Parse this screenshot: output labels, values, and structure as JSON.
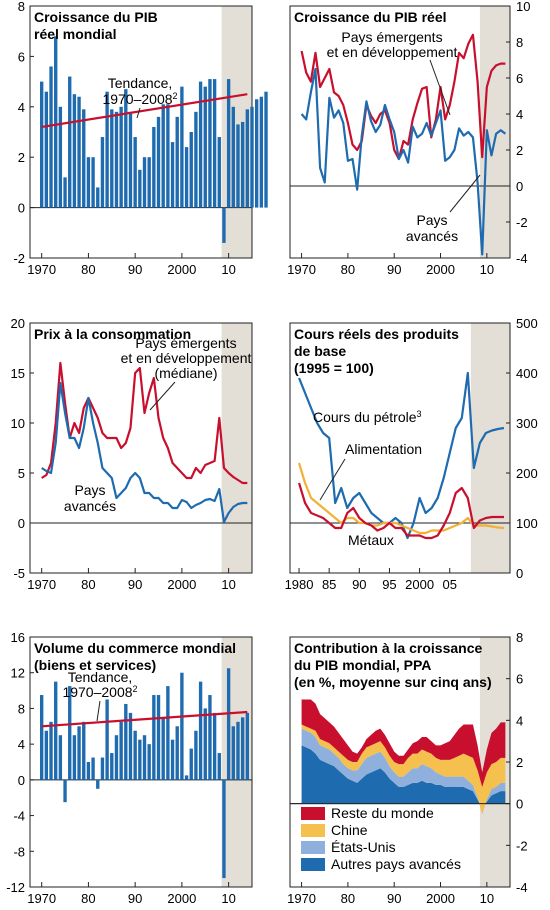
{
  "colors": {
    "bar": "#1f6bb0",
    "trend": "#c8102e",
    "emerging": "#c8102e",
    "advanced": "#1f6bb0",
    "oil": "#1f6bb0",
    "food": "#f2b134",
    "metals": "#c8102e",
    "world_rest": "#c8102e",
    "china": "#f5c04e",
    "us": "#8fb0dc",
    "other_adv": "#1f6bb0",
    "shade": "#e3dfd7"
  },
  "chart_data": [
    {
      "id": "p1",
      "type": "bar",
      "title": [
        "Croissance du PIB",
        "réel mondial"
      ],
      "ylim": [
        -2,
        8
      ],
      "yticks": [
        -2,
        0,
        2,
        4,
        6,
        8
      ],
      "xticks": [
        1970,
        1980,
        1990,
        2000,
        2010
      ],
      "xtick_labels": [
        "1970",
        "80",
        "90",
        "2000",
        "10"
      ],
      "x_start": 1970,
      "values": [
        5.0,
        4.6,
        5.6,
        6.8,
        4.0,
        1.2,
        5.2,
        4.5,
        4.4,
        3.9,
        2.0,
        2.0,
        0.8,
        2.8,
        4.6,
        3.9,
        3.8,
        4.0,
        4.7,
        3.8,
        2.8,
        1.5,
        2.0,
        2.0,
        3.2,
        3.6,
        4.1,
        4.1,
        2.6,
        3.6,
        4.8,
        2.4,
        3.0,
        3.8,
        5.0,
        4.8,
        5.1,
        5.1,
        2.8,
        -1.4,
        5.1,
        4.0,
        3.3,
        3.4,
        3.9,
        4.0,
        4.3,
        4.4,
        4.6
      ],
      "series": [
        {
          "name": "Tendance, 1970–2008",
          "x": [
            1970,
            2014
          ],
          "values": [
            3.2,
            4.5
          ]
        }
      ],
      "annotations": [
        {
          "text": "Tendance,",
          "line2": "1970–2008",
          "sup": "2"
        }
      ],
      "shade_from": 2008.5,
      "shade_to": 2015
    },
    {
      "id": "p2",
      "type": "line",
      "title": [
        "Croissance du PIB réel"
      ],
      "ylim": [
        -4,
        10
      ],
      "yticks": [
        -4,
        -2,
        0,
        2,
        4,
        6,
        8,
        10
      ],
      "xticks": [
        1970,
        1980,
        1990,
        2000,
        2010
      ],
      "xtick_labels": [
        "1970",
        "80",
        "90",
        "2000",
        "10"
      ],
      "x_start": 1970,
      "series": [
        {
          "name": "Pays émergents et en développement",
          "values": [
            7.5,
            6.3,
            5.8,
            7.4,
            5.5,
            6.0,
            6.5,
            5.2,
            5.0,
            4.5,
            3.5,
            2.3,
            2.0,
            2.5,
            4.5,
            3.9,
            3.5,
            4.0,
            4.2,
            3.5,
            2.0,
            1.5,
            2.5,
            2.3,
            3.7,
            4.6,
            5.4,
            5.5,
            2.7,
            3.7,
            5.5,
            3.7,
            4.5,
            5.8,
            7.4,
            7.1,
            7.9,
            8.4,
            5.8,
            1.6,
            5.5,
            6.4,
            6.7,
            6.8,
            6.8
          ]
        },
        {
          "name": "Pays avancés",
          "values": [
            4.0,
            3.7,
            5.2,
            6.5,
            1.0,
            0.2,
            4.9,
            3.8,
            4.2,
            3.5,
            1.4,
            1.5,
            -0.2,
            2.8,
            4.7,
            3.6,
            3.0,
            3.4,
            4.5,
            3.7,
            3.0,
            1.5,
            2.0,
            1.3,
            3.3,
            2.7,
            2.9,
            3.5,
            2.8,
            3.5,
            4.2,
            1.4,
            1.6,
            2.0,
            3.2,
            2.8,
            3.0,
            2.7,
            0.2,
            -3.8,
            3.1,
            1.7,
            2.9,
            3.1,
            2.9
          ]
        }
      ],
      "annotations": [
        {
          "text": "Pays émergents",
          "line2": "et en développement"
        },
        {
          "text": "Pays",
          "line2": "avancés"
        }
      ],
      "shade_from": 2008.5,
      "shade_to": 2015
    },
    {
      "id": "p3",
      "type": "line",
      "title": [
        "Prix à la consommation"
      ],
      "ylim": [
        -5,
        20
      ],
      "yticks": [
        -5,
        0,
        5,
        10,
        15,
        20
      ],
      "xticks": [
        1970,
        1980,
        1990,
        2000,
        2010
      ],
      "xtick_labels": [
        "1970",
        "80",
        "90",
        "2000",
        "10"
      ],
      "x_start": 1970,
      "series": [
        {
          "name": "Pays émergents et en développement (médiane)",
          "values": [
            4.5,
            4.8,
            6.0,
            10.0,
            16.0,
            12.0,
            8.5,
            10.0,
            9.0,
            11.5,
            12.5,
            11.5,
            10.5,
            9.0,
            8.5,
            8.5,
            8.5,
            7.5,
            8.0,
            9.5,
            15.0,
            15.5,
            11.0,
            13.0,
            14.5,
            10.5,
            8.5,
            7.5,
            6.0,
            5.5,
            5.0,
            4.5,
            4.5,
            5.5,
            5.0,
            5.8,
            6.0,
            6.2,
            10.5,
            5.5,
            5.0,
            4.6,
            4.3,
            4.0,
            4.0
          ]
        },
        {
          "name": "Pays avancés",
          "values": [
            5.5,
            5.2,
            5.0,
            8.0,
            14.0,
            11.0,
            8.5,
            8.5,
            7.5,
            9.5,
            12.5,
            10.0,
            8.0,
            5.5,
            5.0,
            4.5,
            2.5,
            3.0,
            3.5,
            4.5,
            5.0,
            4.5,
            3.0,
            3.0,
            2.5,
            2.5,
            2.0,
            2.0,
            1.5,
            1.5,
            2.3,
            2.1,
            1.5,
            1.8,
            2.0,
            2.3,
            2.4,
            2.2,
            3.4,
            0.1,
            1.0,
            1.6,
            1.9,
            2.0,
            2.0
          ]
        }
      ],
      "annotations": [
        {
          "text": "Pays émergents",
          "line2": "et en développement",
          "line3": "(médiane)"
        },
        {
          "text": "Pays",
          "line2": "avancés"
        }
      ],
      "shade_from": 2008.5,
      "shade_to": 2015
    },
    {
      "id": "p4",
      "type": "line",
      "title": [
        "Cours réels des produits",
        "de base",
        "(1995 = 100)"
      ],
      "ylim": [
        0,
        500
      ],
      "yticks": [
        0,
        100,
        200,
        300,
        400,
        500
      ],
      "xticks": [
        1980,
        1985,
        1990,
        1995,
        2000,
        2005
      ],
      "xtick_labels": [
        "1980",
        "85",
        "90",
        "95",
        "2000",
        "05"
      ],
      "x_start": 1980,
      "series": [
        {
          "name": "Cours du pétrole",
          "values": [
            390,
            360,
            330,
            300,
            280,
            270,
            140,
            170,
            130,
            150,
            160,
            140,
            120,
            110,
            100,
            100,
            110,
            100,
            70,
            100,
            150,
            120,
            130,
            150,
            190,
            240,
            290,
            310,
            400,
            210,
            260,
            280,
            285,
            288,
            290
          ]
        },
        {
          "name": "Alimentation",
          "values": [
            220,
            180,
            150,
            140,
            130,
            120,
            110,
            100,
            110,
            110,
            100,
            100,
            95,
            95,
            100,
            100,
            100,
            95,
            90,
            85,
            80,
            80,
            85,
            85,
            85,
            90,
            95,
            100,
            110,
            95,
            95,
            95,
            93,
            91,
            90
          ]
        },
        {
          "name": "Métaux",
          "values": [
            180,
            140,
            120,
            115,
            110,
            100,
            90,
            90,
            120,
            130,
            110,
            100,
            95,
            85,
            90,
            100,
            90,
            90,
            75,
            75,
            75,
            70,
            70,
            75,
            95,
            120,
            160,
            170,
            150,
            90,
            105,
            110,
            112,
            112,
            112
          ]
        }
      ],
      "annotations": [
        {
          "text": "Cours du pétrole",
          "sup": "3"
        },
        {
          "text": "Alimentation"
        },
        {
          "text": "Métaux"
        }
      ],
      "shade_from": 2008.5,
      "shade_to": 2015
    },
    {
      "id": "p5",
      "type": "bar",
      "title": [
        "Volume du commerce mondial",
        "(biens et services)"
      ],
      "ylim": [
        -12,
        16
      ],
      "yticks": [
        -12,
        -8,
        -4,
        0,
        4,
        8,
        12,
        16
      ],
      "xticks": [
        1970,
        1980,
        1990,
        2000,
        2010
      ],
      "xtick_labels": [
        "1970",
        "80",
        "90",
        "2000",
        "10"
      ],
      "x_start": 1970,
      "values": [
        9.5,
        5.5,
        6.5,
        11.0,
        5.0,
        -2.5,
        10.5,
        5.0,
        6.0,
        6.5,
        2.0,
        2.5,
        -1.0,
        2.5,
        9.0,
        3.0,
        5.0,
        6.5,
        8.5,
        7.5,
        5.5,
        4.5,
        5.0,
        4.0,
        9.5,
        9.5,
        7.0,
        10.5,
        4.5,
        6.0,
        12.0,
        0.5,
        3.5,
        5.5,
        11.0,
        8.0,
        9.5,
        7.5,
        3.0,
        -11.0,
        12.5,
        6.0,
        6.5,
        7.0,
        7.5
      ],
      "series": [
        {
          "name": "Tendance, 1970–2008",
          "x": [
            1970,
            2014
          ],
          "values": [
            6.0,
            7.6
          ]
        }
      ],
      "annotations": [
        {
          "text": "Tendance,",
          "line2": "1970–2008",
          "sup": "2"
        }
      ],
      "shade_from": 2008.5,
      "shade_to": 2015
    },
    {
      "id": "p6",
      "type": "area",
      "title": [
        "Contribution à la croissance",
        "du PIB mondial, PPA",
        "(en %, moyenne sur cinq ans)"
      ],
      "ylim": [
        -4,
        8
      ],
      "yticks": [
        -4,
        -2,
        0,
        2,
        4,
        6,
        8
      ],
      "xticks": [
        1970,
        1980,
        1990,
        2000,
        2010
      ],
      "xtick_labels": [
        "1970",
        "80",
        "90",
        "2000",
        "10"
      ],
      "x_start": 1970,
      "series": [
        {
          "name": "Autres pays avancés",
          "values": [
            2.8,
            2.7,
            2.6,
            2.4,
            2.1,
            2.0,
            1.9,
            1.8,
            1.6,
            1.4,
            1.2,
            1.1,
            1.0,
            1.2,
            1.4,
            1.5,
            1.6,
            1.7,
            1.5,
            1.2,
            1.0,
            0.8,
            0.8,
            0.9,
            1.0,
            1.0,
            1.1,
            1.0,
            1.0,
            0.9,
            0.9,
            0.8,
            0.8,
            0.8,
            0.8,
            0.8,
            0.7,
            0.6,
            0.2,
            -0.2,
            0.1,
            0.4,
            0.5,
            0.6,
            0.6
          ]
        },
        {
          "name": "États-Unis",
          "values": [
            0.8,
            0.8,
            0.8,
            0.8,
            0.7,
            0.7,
            0.7,
            0.6,
            0.6,
            0.5,
            0.5,
            0.5,
            0.6,
            0.7,
            0.8,
            0.8,
            0.8,
            0.8,
            0.7,
            0.6,
            0.5,
            0.5,
            0.5,
            0.6,
            0.7,
            0.7,
            0.8,
            0.8,
            0.7,
            0.6,
            0.5,
            0.5,
            0.5,
            0.5,
            0.5,
            0.5,
            0.4,
            0.3,
            0.1,
            -0.3,
            0.1,
            0.3,
            0.3,
            0.4,
            0.4
          ]
        },
        {
          "name": "Chine",
          "values": [
            0.2,
            0.2,
            0.2,
            0.3,
            0.3,
            0.3,
            0.3,
            0.3,
            0.3,
            0.4,
            0.4,
            0.4,
            0.4,
            0.5,
            0.5,
            0.5,
            0.5,
            0.5,
            0.5,
            0.5,
            0.5,
            0.6,
            0.6,
            0.7,
            0.7,
            0.7,
            0.7,
            0.7,
            0.7,
            0.7,
            0.7,
            0.8,
            0.8,
            0.9,
            1.0,
            1.1,
            1.2,
            1.3,
            1.3,
            1.3,
            1.3,
            1.2,
            1.2,
            1.2,
            1.2
          ]
        },
        {
          "name": "Reste du monde",
          "values": [
            1.2,
            1.3,
            1.4,
            1.3,
            1.2,
            1.1,
            1.0,
            1.0,
            0.9,
            0.8,
            0.7,
            0.5,
            0.4,
            0.3,
            0.4,
            0.5,
            0.6,
            0.6,
            0.6,
            0.6,
            0.5,
            0.4,
            0.4,
            0.4,
            0.5,
            0.6,
            0.6,
            0.7,
            0.6,
            0.6,
            0.7,
            0.8,
            0.9,
            1.1,
            1.3,
            1.4,
            1.5,
            1.6,
            1.2,
            0.7,
            1.1,
            1.5,
            1.6,
            1.7,
            1.7
          ]
        }
      ],
      "legend": [
        "Reste du monde",
        "Chine",
        "États-Unis",
        "Autres pays avancés"
      ],
      "legend_position": "bottom-left",
      "shade_from": 2008.5,
      "shade_to": 2015
    }
  ]
}
